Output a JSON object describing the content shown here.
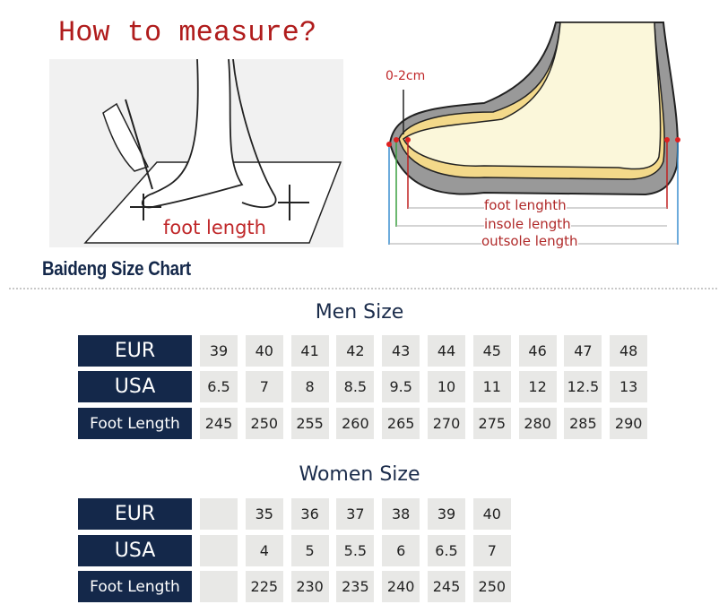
{
  "title": "How to measure?",
  "left_illustration": {
    "label": "foot length"
  },
  "right_illustration": {
    "height_note": "0-2cm",
    "labels": [
      "foot lenghth",
      "insole length",
      "outsole length"
    ]
  },
  "brand_title": "Baideng Size Chart",
  "colors": {
    "title_red": "#b01c1c",
    "navy": "#14284a",
    "cell_bg": "#e8e8e6"
  },
  "men": {
    "title": "Men Size",
    "rows": [
      {
        "label": "EUR",
        "values": [
          "39",
          "40",
          "41",
          "42",
          "43",
          "44",
          "45",
          "46",
          "47",
          "48"
        ]
      },
      {
        "label": "USA",
        "values": [
          "6.5",
          "7",
          "8",
          "8.5",
          "9.5",
          "10",
          "11",
          "12",
          "12.5",
          "13"
        ]
      },
      {
        "label": "Foot Length",
        "values": [
          "245",
          "250",
          "255",
          "260",
          "265",
          "270",
          "275",
          "280",
          "285",
          "290"
        ]
      }
    ]
  },
  "women": {
    "title": "Women Size",
    "rows": [
      {
        "label": "EUR",
        "values": [
          "",
          "35",
          "36",
          "37",
          "38",
          "39",
          "40"
        ]
      },
      {
        "label": "USA",
        "values": [
          "",
          "4",
          "5",
          "5.5",
          "6",
          "6.5",
          "7"
        ]
      },
      {
        "label": "Foot Length",
        "values": [
          "",
          "225",
          "230",
          "235",
          "240",
          "245",
          "250"
        ]
      }
    ]
  }
}
